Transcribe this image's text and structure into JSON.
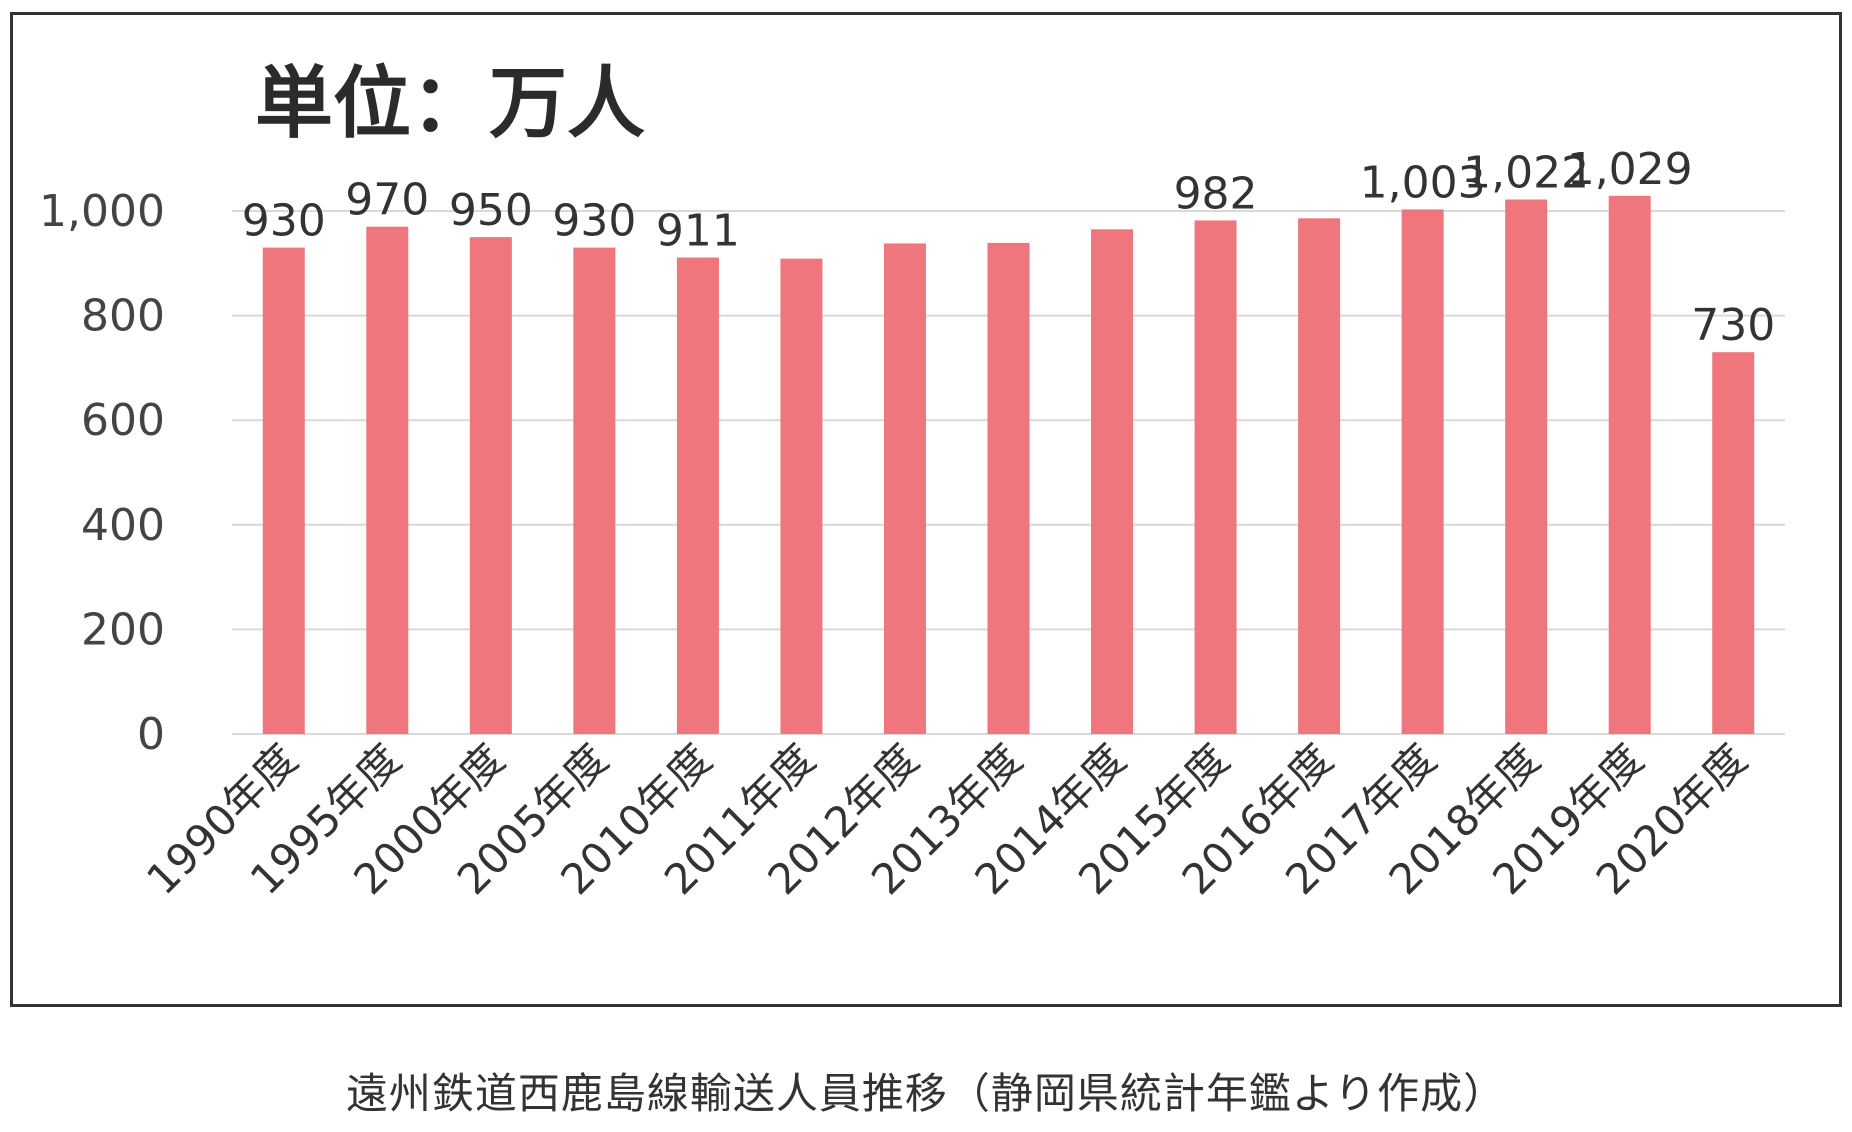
{
  "chart_data": {
    "type": "bar",
    "unit_label": "単位：万人",
    "categories": [
      "1990年度",
      "1995年度",
      "2000年度",
      "2005年度",
      "2010年度",
      "2011年度",
      "2012年度",
      "2013年度",
      "2014年度",
      "2015年度",
      "2016年度",
      "2017年度",
      "2018年度",
      "2019年度",
      "2020年度"
    ],
    "values": [
      930,
      970,
      950,
      930,
      911,
      909,
      938,
      939,
      965,
      982,
      986,
      1003,
      1022,
      1029,
      730
    ],
    "data_labels": [
      "930",
      "970",
      "950",
      "930",
      "911",
      "",
      "",
      "",
      "",
      "982",
      "",
      "1,003",
      "1,022",
      "1,029",
      "730"
    ],
    "y_ticks": [
      0,
      200,
      400,
      600,
      800,
      1000
    ],
    "y_tick_labels": [
      "0",
      "200",
      "400",
      "600",
      "800",
      "1,000"
    ],
    "ylim": [
      0,
      1000
    ],
    "grid": true,
    "bar_color": "#ee767c",
    "caption": "遠州鉄道西鹿島線輸送人員推移（静岡県統計年鑑より作成）"
  }
}
